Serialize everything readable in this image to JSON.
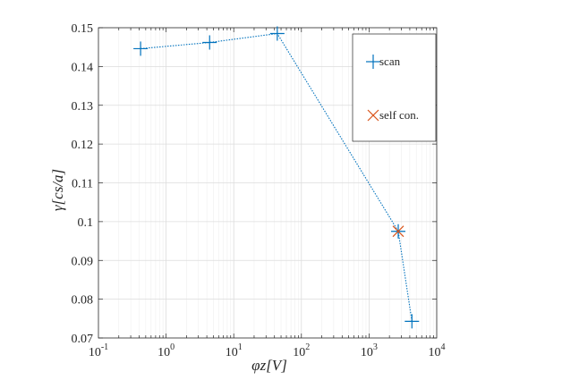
{
  "chart_data": {
    "type": "scatter",
    "xlabel": "φz[V]",
    "ylabel": "γ[cs/a]",
    "xscale": "log",
    "xlim": [
      0.1,
      10000
    ],
    "ylim": [
      0.07,
      0.15
    ],
    "x_ticks": [
      {
        "value": 0.1,
        "base": "10",
        "exp": "-1"
      },
      {
        "value": 1,
        "base": "10",
        "exp": "0"
      },
      {
        "value": 10,
        "base": "10",
        "exp": "1"
      },
      {
        "value": 100,
        "base": "10",
        "exp": "2"
      },
      {
        "value": 1000,
        "base": "10",
        "exp": "3"
      },
      {
        "value": 10000,
        "base": "10",
        "exp": "4"
      }
    ],
    "y_ticks": [
      {
        "value": 0.07,
        "label": "0.07"
      },
      {
        "value": 0.08,
        "label": "0.08"
      },
      {
        "value": 0.09,
        "label": "0.09"
      },
      {
        "value": 0.1,
        "label": "0.1"
      },
      {
        "value": 0.11,
        "label": "0.11"
      },
      {
        "value": 0.12,
        "label": "0.12"
      },
      {
        "value": 0.13,
        "label": "0.13"
      },
      {
        "value": 0.14,
        "label": "0.14"
      },
      {
        "value": 0.15,
        "label": "0.15"
      }
    ],
    "grid": true,
    "legend_position": "top-right",
    "series": [
      {
        "name": "scan",
        "marker": "plus",
        "line": "dotted",
        "color": "#0072BD",
        "x": [
          0.42,
          4.4,
          44,
          2700,
          4300
        ],
        "y": [
          0.1446,
          0.1462,
          0.1485,
          0.0975,
          0.0743
        ]
      },
      {
        "name": "self con.",
        "marker": "x",
        "line": "none",
        "color": "#D95319",
        "x": [
          2700
        ],
        "y": [
          0.0975
        ]
      }
    ]
  }
}
